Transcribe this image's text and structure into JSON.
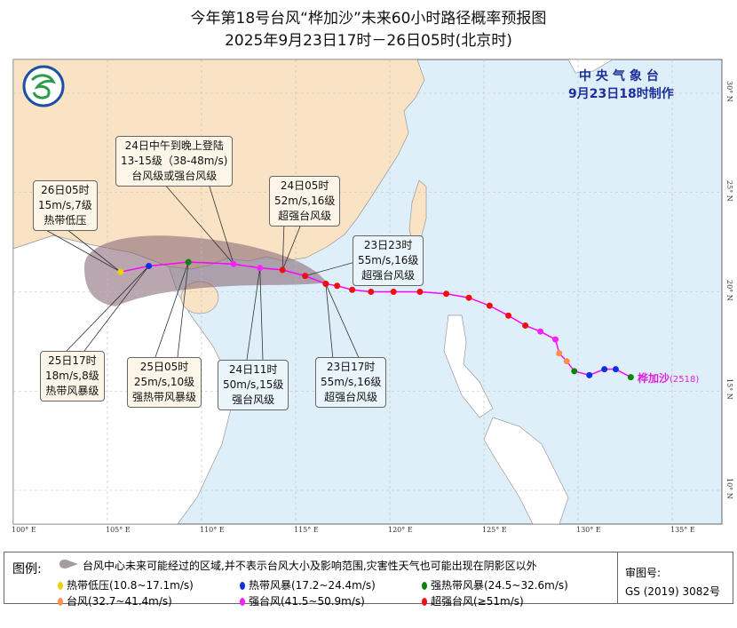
{
  "title": {
    "line1": "今年第18号台风“桦加沙”未来60小时路径概率预报图",
    "line2": "2025年9月23日17时－26日05时(北京时)"
  },
  "issuer": {
    "name": "中央气象台",
    "issued": "9月23日18时制作"
  },
  "storm": {
    "name": "桦加沙",
    "id": "(2518)"
  },
  "axes": {
    "lon_labels": [
      "100° E",
      "105° E",
      "110° E",
      "115° E",
      "120° E",
      "125° E",
      "130° E",
      "135° E"
    ],
    "lat_labels": [
      "30° N",
      "25° N",
      "20° N",
      "15° N",
      "10° N"
    ],
    "lon_range": [
      100,
      137.5
    ],
    "lat_range": [
      8.4,
      31.7
    ]
  },
  "colors": {
    "tropical_depression": "#f0d000",
    "tropical_storm": "#1030e0",
    "severe_tropical_storm": "#108010",
    "typhoon": "#ff9050",
    "severe_typhoon": "#ff20ff",
    "super_typhoon": "#ee1010",
    "track_line": "#ff00ff",
    "cone": "#8a6a7a",
    "ocean": "#dfeffa",
    "china_land": "#f9e3c4"
  },
  "forecast_points": [
    {
      "time": "23日17时",
      "lon": 116.6,
      "lat": 20.4,
      "wind": "55m/s",
      "level": "16级",
      "category": "超强台风级",
      "class": "super_typhoon"
    },
    {
      "time": "23日23时",
      "lon": 115.5,
      "lat": 20.8,
      "wind": "55m/s",
      "level": "16级",
      "category": "超强台风级",
      "class": "super_typhoon"
    },
    {
      "time": "24日05时",
      "lon": 114.3,
      "lat": 21.1,
      "wind": "52m/s",
      "level": "16级",
      "category": "超强台风级",
      "class": "super_typhoon"
    },
    {
      "time": "24日11时",
      "lon": 113.1,
      "lat": 21.2,
      "wind": "50m/s",
      "level": "15级",
      "category": "强台风级",
      "class": "severe_typhoon"
    },
    {
      "time": "24日中午到晚上登陆",
      "lon": 111.7,
      "lat": 21.4,
      "wind": "13-15级（38-48m/s)",
      "level": "",
      "category": "台风级或强台风级",
      "class": "severe_typhoon"
    },
    {
      "time": "25日05时",
      "lon": 109.3,
      "lat": 21.5,
      "wind": "25m/s",
      "level": "10级",
      "category": "强热带风暴级",
      "class": "severe_tropical_storm"
    },
    {
      "time": "25日17时",
      "lon": 107.2,
      "lat": 21.3,
      "wind": "18m/s",
      "level": "8级",
      "category": "热带风暴级",
      "class": "tropical_storm"
    },
    {
      "time": "26日05时",
      "lon": 105.7,
      "lat": 21.0,
      "wind": "15m/s",
      "level": "7级",
      "category": "热带低压",
      "class": "tropical_depression"
    }
  ],
  "past_track": [
    {
      "lon": 132.8,
      "lat": 15.7,
      "class": "severe_tropical_storm"
    },
    {
      "lon": 132.0,
      "lat": 16.1,
      "class": "tropical_storm"
    },
    {
      "lon": 131.4,
      "lat": 16.1,
      "class": "tropical_storm"
    },
    {
      "lon": 130.6,
      "lat": 15.8,
      "class": "tropical_storm"
    },
    {
      "lon": 129.8,
      "lat": 16.0,
      "class": "severe_tropical_storm"
    },
    {
      "lon": 129.4,
      "lat": 16.5,
      "class": "typhoon"
    },
    {
      "lon": 129.0,
      "lat": 16.9,
      "class": "typhoon"
    },
    {
      "lon": 128.8,
      "lat": 17.6,
      "class": "severe_typhoon"
    },
    {
      "lon": 128.0,
      "lat": 18.0,
      "class": "severe_typhoon"
    },
    {
      "lon": 127.2,
      "lat": 18.3,
      "class": "super_typhoon"
    },
    {
      "lon": 126.3,
      "lat": 18.8,
      "class": "super_typhoon"
    },
    {
      "lon": 125.3,
      "lat": 19.3,
      "class": "super_typhoon"
    },
    {
      "lon": 124.2,
      "lat": 19.7,
      "class": "super_typhoon"
    },
    {
      "lon": 123.0,
      "lat": 19.9,
      "class": "super_typhoon"
    },
    {
      "lon": 121.6,
      "lat": 20.0,
      "class": "super_typhoon"
    },
    {
      "lon": 120.2,
      "lat": 20.0,
      "class": "super_typhoon"
    },
    {
      "lon": 119.0,
      "lat": 20.0,
      "class": "super_typhoon"
    },
    {
      "lon": 118.0,
      "lat": 20.1,
      "class": "super_typhoon"
    },
    {
      "lon": 117.2,
      "lat": 20.3,
      "class": "super_typhoon"
    },
    {
      "lon": 116.6,
      "lat": 20.4,
      "class": "super_typhoon"
    }
  ],
  "legend": {
    "title": "图例:",
    "cone_text": "台风中心未来可能经过的区域,并不表示台风大小及影响范围,灾害性天气也可能出现在阴影区以外",
    "items": [
      {
        "label": "热带低压(10.8~17.1m/s)",
        "class": "tropical_depression"
      },
      {
        "label": "热带风暴(17.2~24.4m/s)",
        "class": "tropical_storm"
      },
      {
        "label": "强热带风暴(24.5~32.6m/s)",
        "class": "severe_tropical_storm"
      },
      {
        "label": "台风(32.7~41.4m/s)",
        "class": "typhoon"
      },
      {
        "label": "强台风(41.5~50.9m/s)",
        "class": "severe_typhoon"
      },
      {
        "label": "超强台风(≥51m/s)",
        "class": "super_typhoon"
      }
    ],
    "approval_label": "审图号:",
    "approval_number": "GS (2019) 3082号"
  }
}
